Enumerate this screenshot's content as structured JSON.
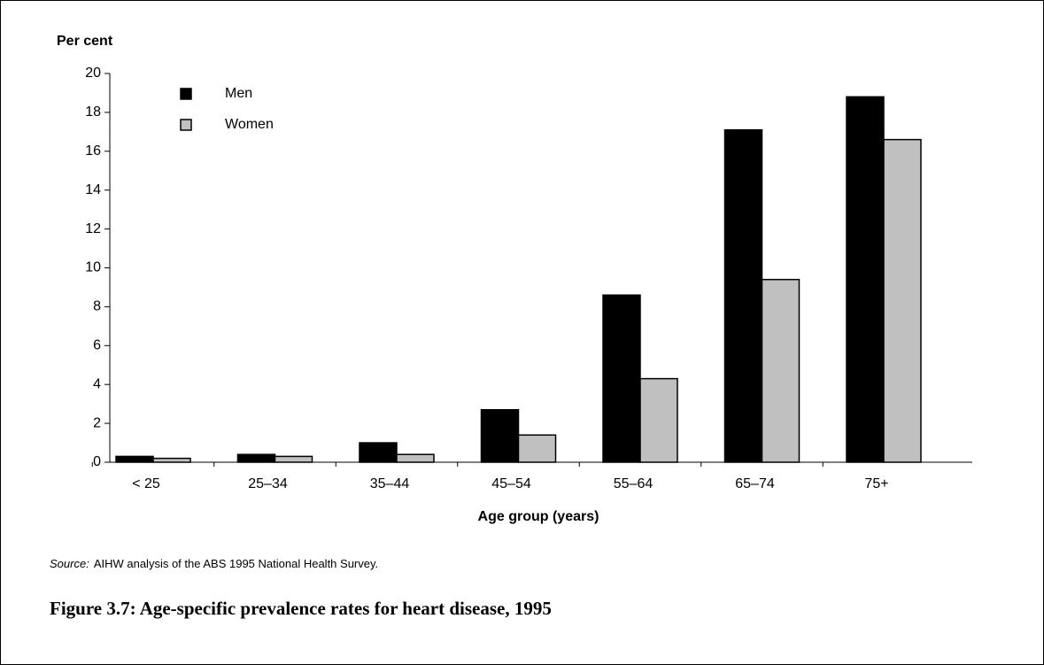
{
  "chart_data": {
    "type": "bar",
    "y_label": "Per cent",
    "x_label": "Age group (years)",
    "categories": [
      "< 25",
      "25–34",
      "35–44",
      "45–54",
      "55–64",
      "65–74",
      "75+"
    ],
    "series": [
      {
        "name": "Men",
        "color": "#000000",
        "values": [
          0.3,
          0.4,
          1.0,
          2.7,
          8.6,
          17.1,
          18.8
        ]
      },
      {
        "name": "Women",
        "color": "#c0c0c0",
        "values": [
          0.2,
          0.3,
          0.4,
          1.4,
          4.3,
          9.4,
          16.6
        ]
      }
    ],
    "ylim": [
      0,
      20
    ],
    "yticks": [
      0,
      2,
      4,
      6,
      8,
      10,
      12,
      14,
      16,
      18,
      20
    ],
    "legend": "upper left",
    "source_label": "Source:",
    "source_text": "AIHW analysis of the ABS 1995 National Health Survey.",
    "caption": "Figure 3.7: Age-specific prevalence rates for heart disease, 1995"
  }
}
